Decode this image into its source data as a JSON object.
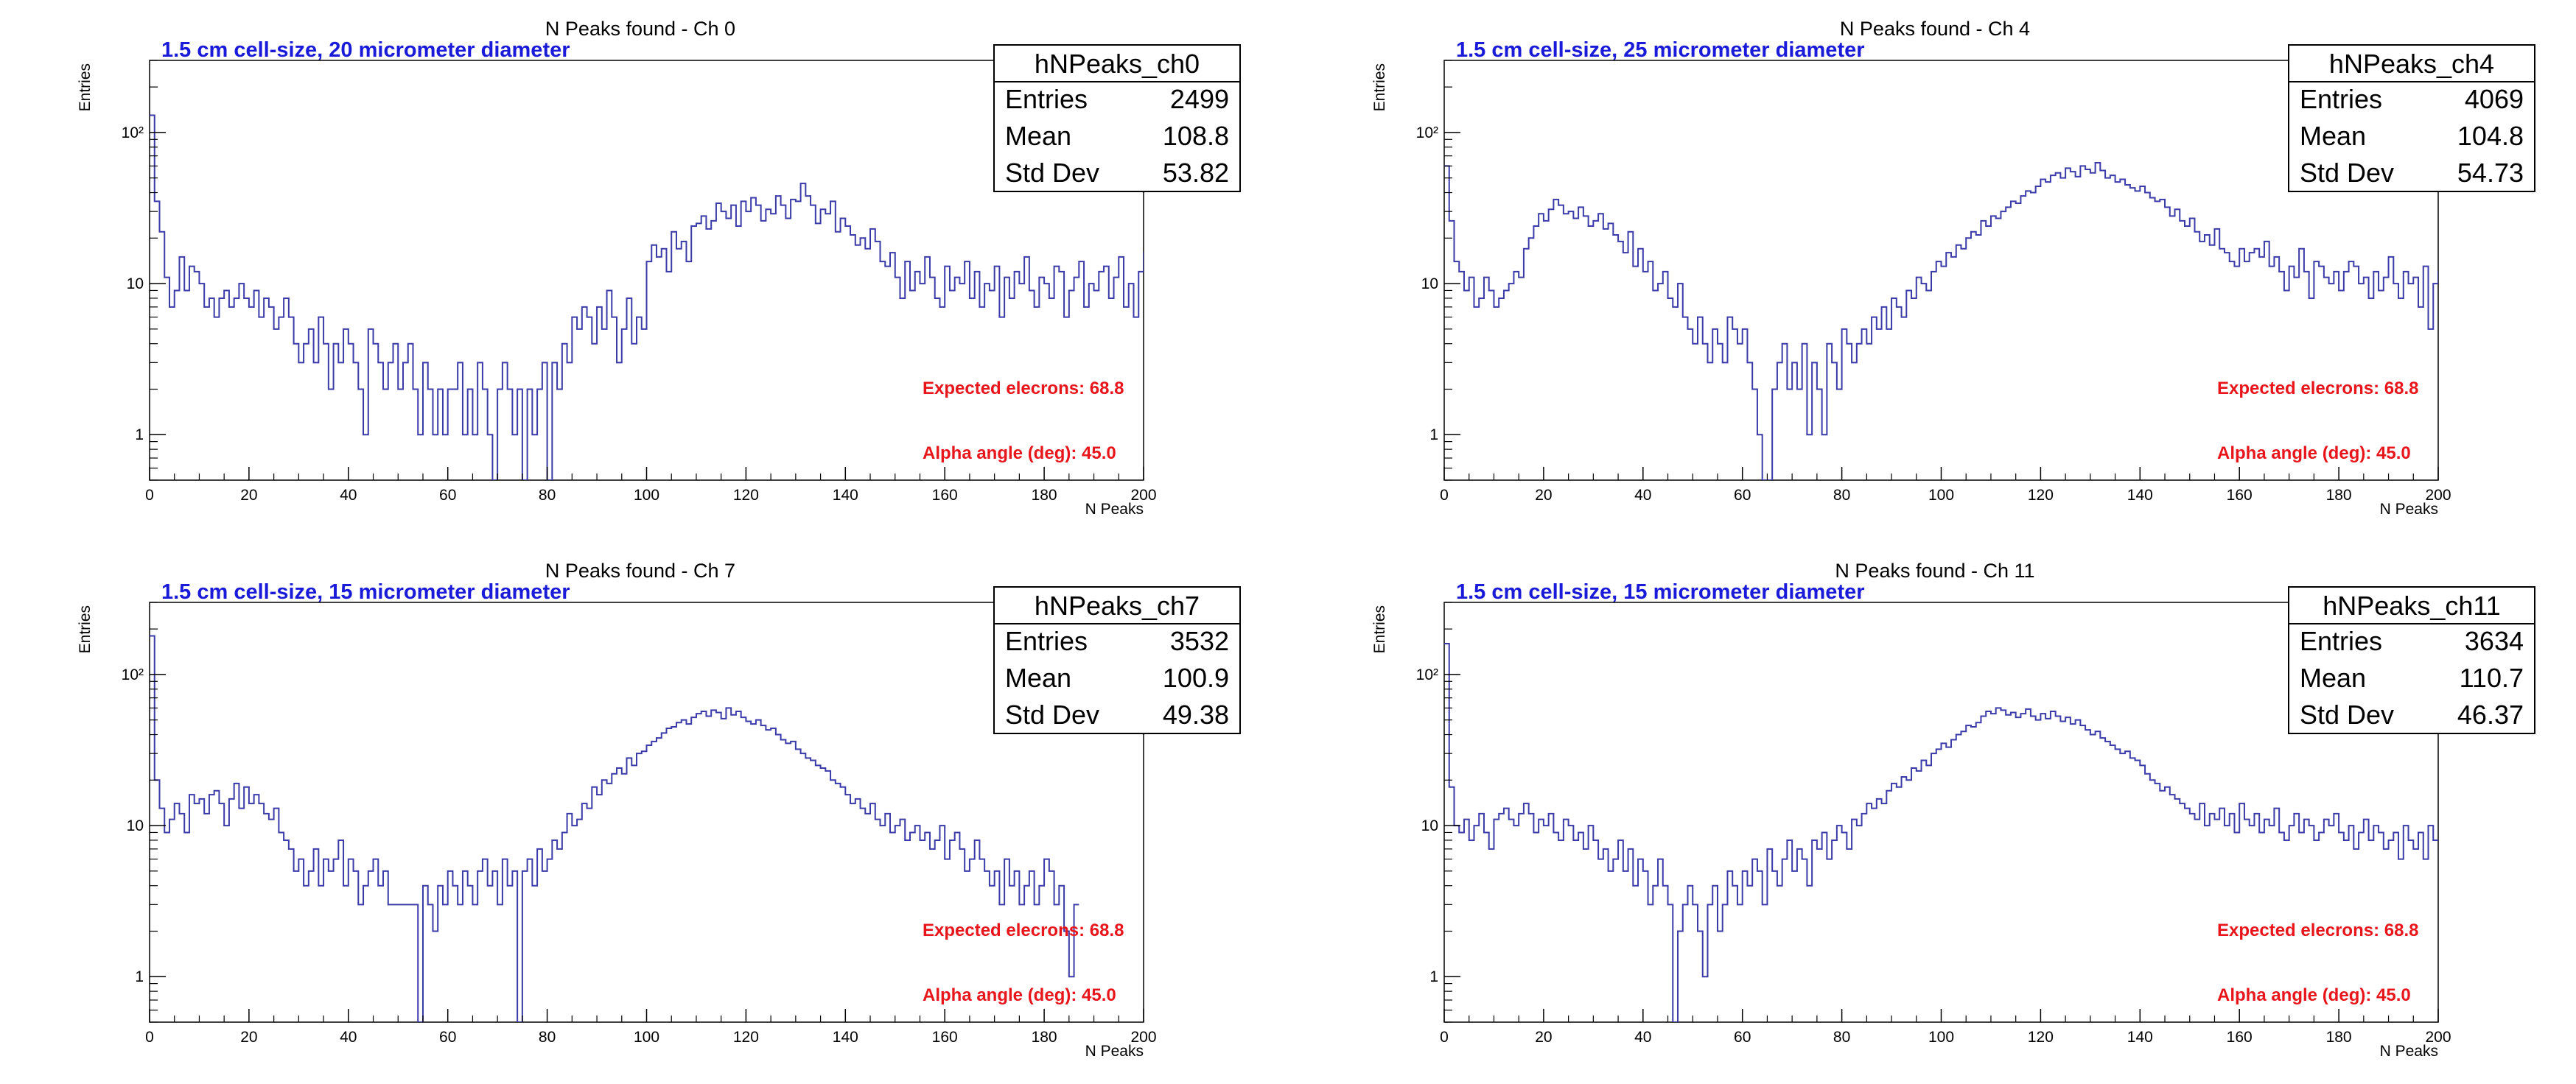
{
  "colors": {
    "hist": "#3a3aa8",
    "subtitle": "#1a1ad9",
    "annotation": "#e8151b",
    "frame": "#000000"
  },
  "chart_data": [
    {
      "type": "histogram",
      "title": "N Peaks found - Ch 0",
      "subtitle": "1.5 cm cell-size, 20 micrometer diameter",
      "xlabel": "N Peaks",
      "ylabel": "Entries",
      "xlim": [
        0,
        200
      ],
      "ylim": [
        0.5,
        300
      ],
      "yscale": "log",
      "xticks": [
        "0",
        "20",
        "40",
        "60",
        "80",
        "100",
        "120",
        "140",
        "160",
        "180",
        "200"
      ],
      "yticks": [
        "1",
        "10",
        "10²"
      ],
      "stats": {
        "name": "hNPeaks_ch0",
        "rows": [
          {
            "label": "Entries",
            "value": "2499"
          },
          {
            "label": "Mean",
            "value": "108.8"
          },
          {
            "label": "Std Dev",
            "value": "53.82"
          }
        ]
      },
      "annotations": [
        "Expected elecrons: 68.8",
        "Alpha angle (deg): 45.0"
      ],
      "bin_width": 1,
      "values": [
        130,
        35,
        22,
        11,
        7,
        9,
        15,
        9,
        13,
        12,
        10,
        7,
        8,
        6,
        8,
        9,
        7,
        8,
        10,
        8,
        7,
        9,
        6,
        8,
        7,
        5,
        6,
        8,
        6,
        4,
        3,
        4,
        5,
        3,
        6,
        4,
        2,
        4,
        3,
        5,
        4,
        3,
        2,
        1,
        5,
        4,
        3,
        2,
        3,
        4,
        2,
        3,
        4,
        2,
        1,
        3,
        2,
        1,
        2,
        1,
        2,
        2,
        3,
        1,
        2,
        1,
        3,
        2,
        1,
        0,
        2,
        3,
        2,
        1,
        2,
        0,
        2,
        1,
        2,
        3,
        0,
        3,
        2,
        4,
        3,
        6,
        5,
        7,
        6,
        4,
        7,
        5,
        9,
        6,
        3,
        5,
        8,
        4,
        6,
        5,
        14,
        18,
        15,
        17,
        12,
        22,
        17,
        19,
        14,
        24,
        25,
        28,
        23,
        26,
        34,
        30,
        27,
        33,
        24,
        35,
        30,
        37,
        33,
        26,
        31,
        29,
        38,
        33,
        27,
        36,
        35,
        46,
        38,
        33,
        25,
        31,
        29,
        35,
        22,
        27,
        24,
        21,
        18,
        20,
        17,
        23,
        19,
        14,
        13,
        16,
        11,
        8,
        14,
        9,
        12,
        10,
        15,
        11,
        8,
        7,
        13,
        9,
        11,
        10,
        14,
        8,
        12,
        7,
        10,
        9,
        13,
        6,
        11,
        8,
        12,
        10,
        15,
        9,
        7,
        11,
        10,
        8,
        13,
        12,
        6,
        9,
        11,
        14,
        7,
        10,
        9,
        12,
        13,
        8,
        11,
        15,
        7,
        10,
        6,
        12,
        16,
        3
      ]
    },
    {
      "type": "histogram",
      "title": "N Peaks found - Ch 4",
      "subtitle": "1.5 cm cell-size, 25 micrometer diameter",
      "xlabel": "N Peaks",
      "ylabel": "Entries",
      "xlim": [
        0,
        200
      ],
      "ylim": [
        0.5,
        300
      ],
      "yscale": "log",
      "xticks": [
        "0",
        "20",
        "40",
        "60",
        "80",
        "100",
        "120",
        "140",
        "160",
        "180",
        "200"
      ],
      "yticks": [
        "1",
        "10",
        "10²"
      ],
      "stats": {
        "name": "hNPeaks_ch4",
        "rows": [
          {
            "label": "Entries",
            "value": "4069"
          },
          {
            "label": "Mean",
            "value": "104.8"
          },
          {
            "label": "Std Dev",
            "value": "54.73"
          }
        ]
      },
      "annotations": [
        "Expected elecrons: 68.8",
        "Alpha angle (deg): 45.0"
      ],
      "bin_width": 1,
      "values": [
        60,
        26,
        14,
        12,
        9,
        11,
        7,
        8,
        11,
        9,
        7,
        8,
        9,
        10,
        12,
        11,
        17,
        20,
        24,
        29,
        26,
        31,
        36,
        33,
        29,
        30,
        27,
        32,
        28,
        24,
        26,
        29,
        23,
        25,
        21,
        19,
        16,
        22,
        13,
        17,
        12,
        14,
        9,
        10,
        12,
        8,
        7,
        10,
        6,
        5,
        4,
        6,
        4,
        3,
        5,
        4,
        3,
        6,
        5,
        4,
        5,
        3,
        2,
        1,
        0.5,
        0.5,
        2,
        3,
        4,
        2,
        3,
        2,
        4,
        1,
        3,
        2,
        1,
        4,
        3,
        2,
        5,
        4,
        3,
        4,
        5,
        4,
        6,
        5,
        7,
        5,
        8,
        7,
        6,
        9,
        8,
        11,
        10,
        9,
        12,
        14,
        13,
        16,
        15,
        18,
        17,
        20,
        22,
        21,
        26,
        24,
        28,
        27,
        30,
        32,
        35,
        34,
        38,
        41,
        40,
        44,
        49,
        47,
        52,
        54,
        50,
        58,
        55,
        51,
        60,
        57,
        54,
        63,
        56,
        50,
        52,
        47,
        49,
        45,
        43,
        41,
        44,
        40,
        37,
        35,
        36,
        32,
        28,
        31,
        26,
        24,
        27,
        22,
        19,
        21,
        18,
        23,
        17,
        16,
        14,
        13,
        17,
        14,
        16,
        17,
        15,
        19,
        13,
        15,
        12,
        9,
        13,
        11,
        17,
        12,
        8,
        14,
        13,
        11,
        10,
        12,
        9,
        12,
        14,
        13,
        10,
        11,
        8,
        12,
        9,
        11,
        15,
        10,
        8,
        12,
        10,
        11,
        7,
        13,
        5,
        10,
        12
      ]
    },
    {
      "type": "histogram",
      "title": "N Peaks found - Ch 7",
      "subtitle": "1.5 cm cell-size, 15 micrometer diameter",
      "xlabel": "N Peaks",
      "ylabel": "Entries",
      "xlim": [
        0,
        200
      ],
      "ylim": [
        0.5,
        300
      ],
      "yscale": "log",
      "xticks": [
        "0",
        "20",
        "40",
        "60",
        "80",
        "100",
        "120",
        "140",
        "160",
        "180",
        "200"
      ],
      "yticks": [
        "1",
        "10",
        "10²"
      ],
      "stats": {
        "name": "hNPeaks_ch7",
        "rows": [
          {
            "label": "Entries",
            "value": "3532"
          },
          {
            "label": "Mean",
            "value": "100.9"
          },
          {
            "label": "Std Dev",
            "value": "49.38"
          }
        ]
      },
      "annotations": [
        "Expected elecrons: 68.8",
        "Alpha angle (deg): 45.0"
      ],
      "bin_width": 1,
      "values": [
        180,
        20,
        13,
        9,
        11,
        14,
        12,
        9,
        16,
        14,
        15,
        12,
        16,
        17,
        14,
        10,
        15,
        19,
        13,
        18,
        14,
        16,
        14,
        12,
        11,
        13,
        9,
        8,
        7,
        5,
        6,
        4,
        5,
        7,
        4,
        6,
        5,
        6,
        8,
        4,
        6,
        5,
        3,
        4,
        5,
        6,
        4,
        5,
        3,
        3,
        3,
        3,
        3,
        3,
        0.4,
        4,
        3,
        2,
        4,
        3,
        5,
        4,
        3,
        5,
        4,
        3,
        5,
        6,
        4,
        5,
        3,
        6,
        4,
        5,
        0.4,
        5,
        6,
        4,
        7,
        5,
        6,
        8,
        7,
        9,
        12,
        10,
        11,
        14,
        13,
        18,
        16,
        20,
        19,
        22,
        24,
        22,
        28,
        25,
        30,
        31,
        34,
        36,
        38,
        41,
        44,
        45,
        48,
        50,
        47,
        52,
        55,
        57,
        53,
        58,
        56,
        51,
        60,
        54,
        57,
        52,
        49,
        47,
        50,
        46,
        43,
        44,
        40,
        37,
        35,
        36,
        32,
        30,
        28,
        27,
        25,
        24,
        23,
        20,
        19,
        18,
        16,
        14,
        15,
        13,
        12,
        14,
        11,
        10,
        12,
        9,
        10,
        11,
        8,
        9,
        10,
        8,
        9,
        7,
        8,
        10,
        6,
        8,
        9,
        7,
        5,
        6,
        8,
        6,
        5,
        4,
        5,
        3,
        6,
        4,
        5,
        3,
        4,
        5,
        3,
        4,
        6,
        5,
        3,
        4,
        2,
        1,
        3
      ]
    },
    {
      "type": "histogram",
      "title": "N Peaks found - Ch 11",
      "subtitle": "1.5 cm cell-size, 15 micrometer diameter",
      "xlabel": "N Peaks",
      "ylabel": "Entries",
      "xlim": [
        0,
        200
      ],
      "ylim": [
        0.5,
        300
      ],
      "yscale": "log",
      "xticks": [
        "0",
        "20",
        "40",
        "60",
        "80",
        "100",
        "120",
        "140",
        "160",
        "180",
        "200"
      ],
      "yticks": [
        "1",
        "10",
        "10²"
      ],
      "stats": {
        "name": "hNPeaks_ch11",
        "rows": [
          {
            "label": "Entries",
            "value": "3634"
          },
          {
            "label": "Mean",
            "value": "110.7"
          },
          {
            "label": "Std Dev",
            "value": "46.37"
          }
        ]
      },
      "annotations": [
        "Expected elecrons: 68.8",
        "Alpha angle (deg): 45.0"
      ],
      "bin_width": 1,
      "values": [
        160,
        18,
        10,
        9,
        11,
        8,
        10,
        12,
        9,
        7,
        11,
        12,
        13,
        11,
        10,
        12,
        14,
        12,
        9,
        11,
        10,
        12,
        9,
        8,
        11,
        10,
        8,
        9,
        7,
        10,
        8,
        6,
        7,
        5,
        6,
        8,
        5,
        7,
        4,
        6,
        5,
        3,
        4,
        6,
        4,
        3,
        0.4,
        2,
        3,
        4,
        3,
        2,
        1,
        3,
        4,
        2,
        3,
        5,
        4,
        3,
        5,
        4,
        6,
        5,
        3,
        7,
        5,
        4,
        6,
        8,
        5,
        7,
        6,
        4,
        8,
        7,
        9,
        6,
        8,
        10,
        9,
        7,
        11,
        10,
        12,
        14,
        13,
        15,
        14,
        17,
        19,
        18,
        21,
        20,
        24,
        23,
        27,
        25,
        30,
        32,
        35,
        33,
        37,
        40,
        42,
        46,
        45,
        48,
        53,
        57,
        55,
        60,
        58,
        54,
        56,
        52,
        55,
        59,
        53,
        50,
        55,
        51,
        57,
        53,
        49,
        52,
        47,
        50,
        46,
        43,
        40,
        42,
        38,
        36,
        34,
        32,
        30,
        31,
        28,
        27,
        25,
        22,
        20,
        19,
        17,
        18,
        16,
        15,
        14,
        13,
        12,
        11,
        14,
        10,
        12,
        11,
        13,
        10,
        12,
        9,
        14,
        11,
        10,
        12,
        9,
        11,
        10,
        13,
        9,
        8,
        10,
        12,
        9,
        11,
        10,
        8,
        9,
        11,
        10,
        12,
        9,
        8,
        10,
        7,
        9,
        11,
        8,
        10,
        9,
        7,
        8,
        9,
        6,
        10,
        8,
        7,
        9,
        6,
        10,
        8
      ]
    }
  ]
}
